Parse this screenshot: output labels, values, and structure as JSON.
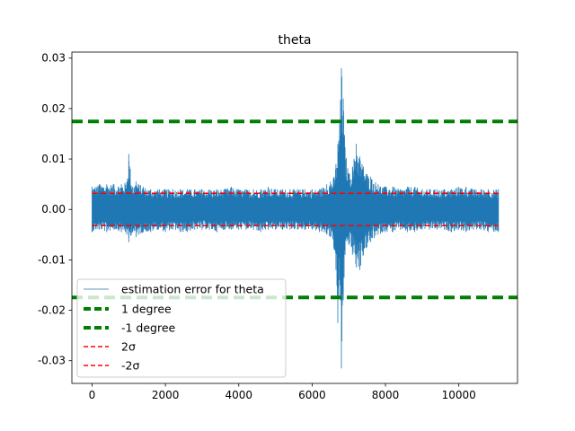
{
  "chart_data": {
    "type": "line",
    "title": "theta",
    "xlabel": "",
    "ylabel": "",
    "xlim": [
      -550,
      11600
    ],
    "ylim": [
      -0.0345,
      0.0312
    ],
    "xticks": [
      0,
      2000,
      4000,
      6000,
      8000,
      10000
    ],
    "xtick_labels": [
      "0",
      "2000",
      "4000",
      "6000",
      "8000",
      "10000"
    ],
    "yticks": [
      0.03,
      0.02,
      0.01,
      0.0,
      -0.01,
      -0.02,
      -0.03
    ],
    "ytick_labels": [
      "0.03",
      "0.02",
      "0.01",
      "0.00",
      "-0.01",
      "-0.02",
      "-0.03"
    ],
    "grid": false,
    "legend_placement": "lower-left",
    "series": [
      {
        "name": "estimation error for theta",
        "kind": "noise",
        "color": "#1f77b4",
        "x_range": [
          0,
          11080
        ],
        "envelope_x": [
          0,
          200,
          400,
          600,
          800,
          950,
          1000,
          1100,
          1200,
          1400,
          1600,
          1800,
          2000,
          2200,
          2400,
          2600,
          2800,
          3000,
          3200,
          3400,
          3600,
          3800,
          4000,
          4200,
          4400,
          4600,
          4800,
          5000,
          5200,
          5400,
          5600,
          5800,
          6000,
          6200,
          6400,
          6500,
          6600,
          6650,
          6700,
          6750,
          6800,
          6850,
          6900,
          7000,
          7100,
          7200,
          7300,
          7400,
          7500,
          7600,
          7800,
          8000,
          8200,
          8400,
          8600,
          8800,
          9000,
          9200,
          9400,
          9600,
          9800,
          10000,
          10200,
          10400,
          10600,
          10800,
          11080
        ],
        "envelope_upper": [
          0.0045,
          0.005,
          0.005,
          0.005,
          0.005,
          0.0055,
          0.011,
          0.0045,
          0.0055,
          0.0045,
          0.004,
          0.004,
          0.004,
          0.004,
          0.004,
          0.004,
          0.004,
          0.004,
          0.004,
          0.004,
          0.004,
          0.0045,
          0.004,
          0.004,
          0.004,
          0.004,
          0.0045,
          0.004,
          0.004,
          0.004,
          0.004,
          0.004,
          0.004,
          0.004,
          0.005,
          0.0055,
          0.0065,
          0.009,
          0.013,
          0.017,
          0.028,
          0.022,
          0.012,
          0.007,
          0.0085,
          0.013,
          0.0105,
          0.0085,
          0.007,
          0.0065,
          0.005,
          0.0045,
          0.0045,
          0.004,
          0.0045,
          0.0045,
          0.004,
          0.004,
          0.004,
          0.004,
          0.004,
          0.0045,
          0.0045,
          0.004,
          0.004,
          0.004,
          0.004
        ],
        "envelope_lower": [
          -0.0045,
          -0.004,
          -0.0045,
          -0.004,
          -0.0045,
          -0.005,
          -0.0065,
          -0.0045,
          -0.0055,
          -0.0045,
          -0.0045,
          -0.004,
          -0.0045,
          -0.004,
          -0.0045,
          -0.0045,
          -0.004,
          -0.004,
          -0.004,
          -0.0045,
          -0.004,
          -0.004,
          -0.004,
          -0.004,
          -0.004,
          -0.0045,
          -0.004,
          -0.004,
          -0.004,
          -0.004,
          -0.004,
          -0.004,
          -0.004,
          -0.0045,
          -0.005,
          -0.0055,
          -0.008,
          -0.012,
          -0.0225,
          -0.014,
          -0.0315,
          -0.018,
          -0.009,
          -0.007,
          -0.009,
          -0.0115,
          -0.012,
          -0.009,
          -0.0075,
          -0.0065,
          -0.005,
          -0.0045,
          -0.0045,
          -0.004,
          -0.0045,
          -0.0045,
          -0.004,
          -0.004,
          -0.004,
          -0.004,
          -0.0045,
          -0.004,
          -0.0045,
          -0.004,
          -0.004,
          -0.0045,
          -0.0045
        ]
      },
      {
        "name": "1 degree",
        "kind": "hline",
        "y": 0.01745,
        "color": "#008000",
        "style": "dashed"
      },
      {
        "name": "-1 degree",
        "kind": "hline",
        "y": -0.01745,
        "color": "#008000",
        "style": "dashed"
      },
      {
        "name": "2σ",
        "kind": "hline",
        "y": 0.0032,
        "x_range": [
          0,
          11080
        ],
        "color": "#ff0000",
        "style": "dashed"
      },
      {
        "name": "-2σ",
        "kind": "hline",
        "y": -0.0032,
        "x_range": [
          0,
          11080
        ],
        "color": "#ff0000",
        "style": "dashed"
      }
    ]
  }
}
